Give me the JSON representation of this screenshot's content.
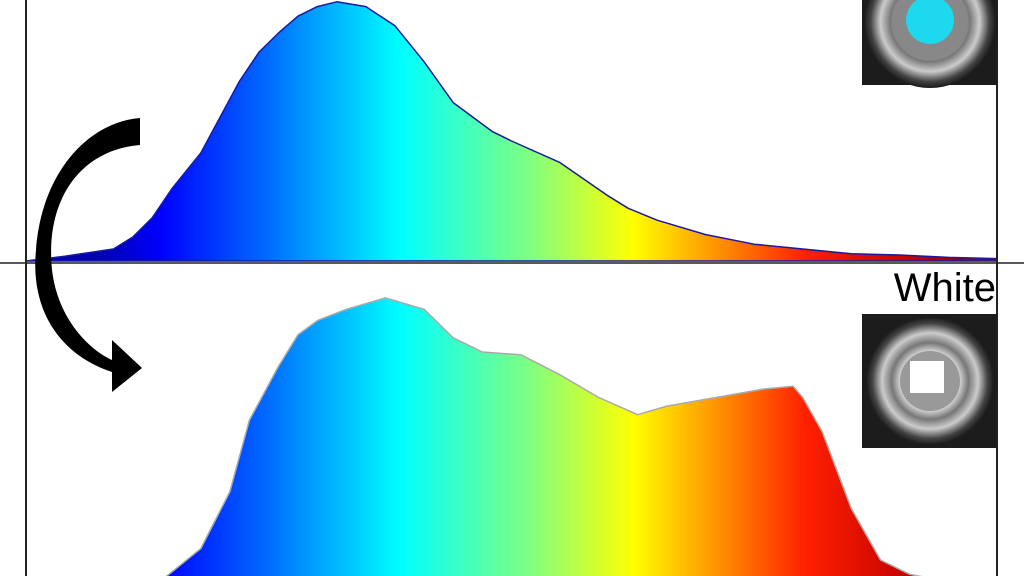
{
  "chart_data": [
    {
      "type": "area",
      "panel": "top",
      "label": "",
      "fill": "spectral-rainbow-gradient",
      "outline_color": "#1a1aa0",
      "x": [
        0,
        4,
        9,
        11,
        13,
        15,
        18,
        20,
        22,
        24,
        26,
        28,
        30,
        32,
        35,
        38,
        41,
        44,
        48,
        50,
        55,
        60,
        62,
        65,
        70,
        75,
        80,
        85,
        90,
        95,
        100
      ],
      "values": [
        0.0,
        0.02,
        0.05,
        0.1,
        0.18,
        0.3,
        0.45,
        0.6,
        0.75,
        0.87,
        0.95,
        1.02,
        1.06,
        1.08,
        1.06,
        0.98,
        0.83,
        0.66,
        0.54,
        0.5,
        0.41,
        0.27,
        0.22,
        0.17,
        0.11,
        0.07,
        0.05,
        0.03,
        0.025,
        0.015,
        0.01
      ]
    },
    {
      "type": "area",
      "panel": "bottom",
      "label": "White",
      "fill": "spectral-rainbow-gradient",
      "outline_color": "#aaaaaa",
      "x": [
        14,
        18,
        21,
        23,
        26,
        28,
        30,
        33,
        37,
        39,
        41,
        44,
        47,
        51,
        55,
        59,
        63,
        66,
        71,
        76,
        79,
        80,
        82,
        85,
        88,
        91,
        94
      ],
      "values": [
        0.0,
        0.11,
        0.31,
        0.56,
        0.75,
        0.86,
        0.91,
        0.95,
        0.99,
        0.97,
        0.95,
        0.85,
        0.8,
        0.79,
        0.72,
        0.64,
        0.58,
        0.61,
        0.64,
        0.67,
        0.68,
        0.64,
        0.52,
        0.25,
        0.07,
        0.02,
        0.0
      ]
    }
  ],
  "legend": {
    "bottom_label": "White"
  },
  "arrow": {
    "direction": "top-to-bottom",
    "icon": "curved-arrow-icon"
  },
  "photos": [
    {
      "name": "blue-sample-photo",
      "center_color": "#1ed8ee"
    },
    {
      "name": "white-sample-photo",
      "center_color": "#ffffff"
    }
  ]
}
